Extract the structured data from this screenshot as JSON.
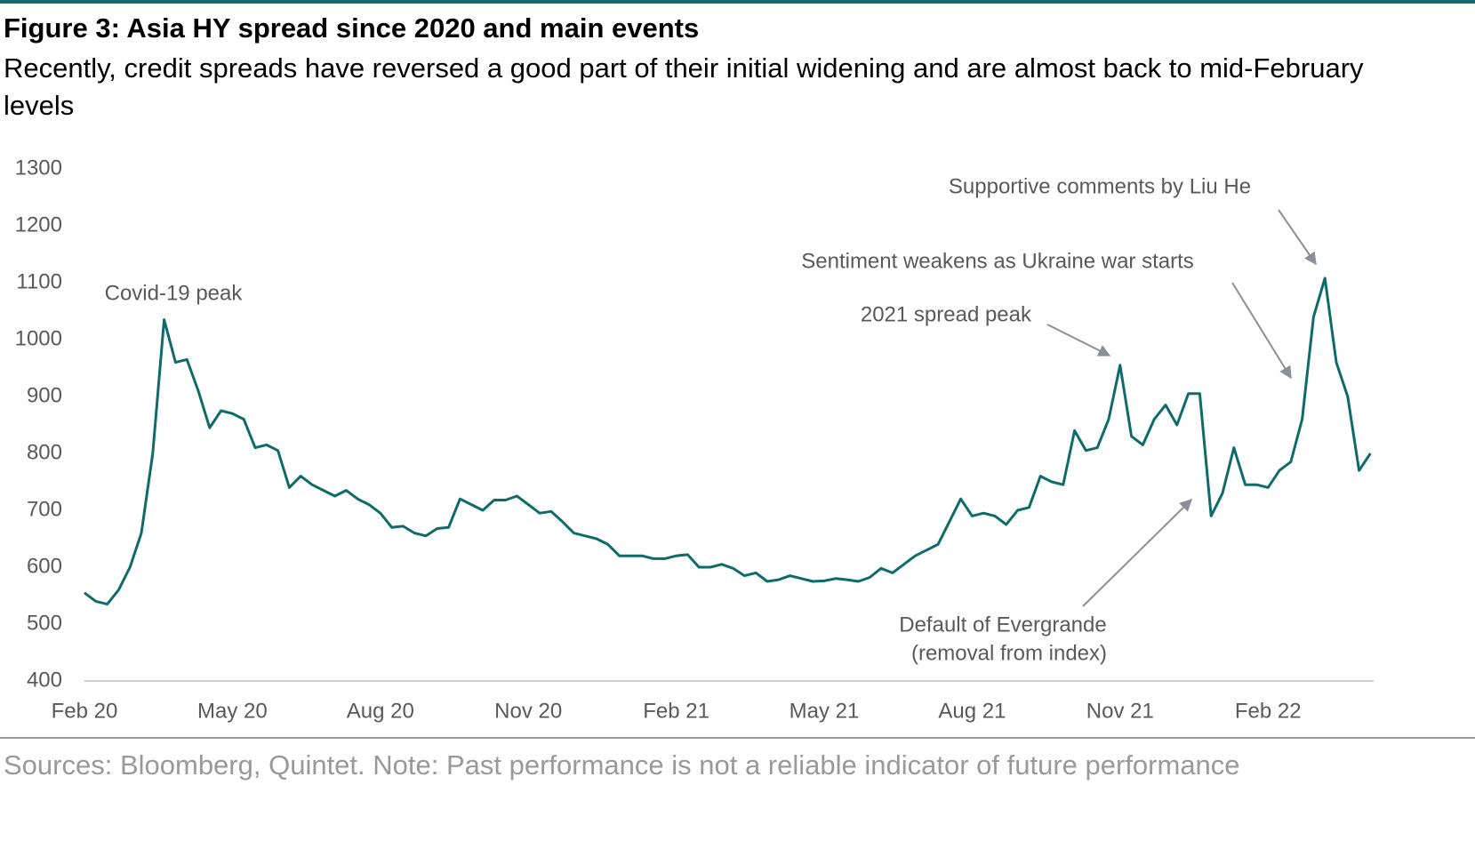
{
  "chart_data": {
    "type": "line",
    "title": "Figure 3: Asia HY spread since 2020 and main events",
    "subtitle": "Recently, credit spreads have reversed a good part of their initial widening and are almost back to mid-February levels",
    "source": "Sources: Bloomberg, Quintet. Note: Past performance is not a reliable indicator of future performance",
    "color": "#0f6b6b",
    "grid": false,
    "ylim": [
      400,
      1300
    ],
    "yticks": [
      400,
      500,
      600,
      700,
      800,
      900,
      1000,
      1100,
      1200,
      1300
    ],
    "categories": [
      "Feb 20",
      null,
      null,
      null,
      null,
      null,
      null,
      null,
      null,
      null,
      null,
      null,
      null,
      "May 20",
      null,
      null,
      null,
      null,
      null,
      null,
      null,
      null,
      null,
      null,
      null,
      null,
      "Aug 20",
      null,
      null,
      null,
      null,
      null,
      null,
      null,
      null,
      null,
      null,
      null,
      null,
      "Nov 20",
      null,
      null,
      null,
      null,
      null,
      null,
      null,
      null,
      null,
      null,
      null,
      null,
      "Feb 21",
      null,
      null,
      null,
      null,
      null,
      null,
      null,
      null,
      null,
      null,
      null,
      null,
      "May 21",
      null,
      null,
      null,
      null,
      null,
      null,
      null,
      null,
      null,
      null,
      null,
      null,
      "Aug 21",
      null,
      null,
      null,
      null,
      null,
      null,
      null,
      null,
      null,
      null,
      null,
      null,
      "Nov 21",
      null,
      null,
      null,
      null,
      null,
      null,
      null,
      null,
      null,
      null,
      null,
      null,
      "Feb 22",
      null,
      null,
      null,
      null,
      null,
      null,
      null,
      null,
      null
    ],
    "values": [
      555,
      540,
      535,
      560,
      600,
      660,
      800,
      1035,
      960,
      965,
      910,
      845,
      875,
      870,
      860,
      810,
      815,
      805,
      740,
      760,
      745,
      735,
      725,
      735,
      720,
      710,
      695,
      670,
      672,
      660,
      655,
      668,
      670,
      720,
      710,
      700,
      718,
      718,
      725,
      710,
      695,
      698,
      680,
      660,
      655,
      650,
      640,
      620,
      620,
      620,
      615,
      615,
      620,
      622,
      600,
      600,
      605,
      598,
      585,
      590,
      575,
      578,
      585,
      580,
      575,
      576,
      580,
      578,
      575,
      582,
      598,
      590,
      605,
      620,
      630,
      640,
      680,
      720,
      690,
      695,
      690,
      675,
      700,
      705,
      760,
      750,
      745,
      840,
      805,
      810,
      860,
      955,
      830,
      815,
      860,
      885,
      850,
      905,
      905,
      690,
      730,
      810,
      745,
      745,
      740,
      770,
      785,
      860,
      1040,
      1108,
      960,
      900,
      770,
      800
    ],
    "annotations": [
      {
        "lines": [
          "Covid-19 peak"
        ]
      },
      {
        "lines": [
          "2021 spread peak"
        ]
      },
      {
        "lines": [
          "Sentiment weakens as Ukraine war starts"
        ]
      },
      {
        "lines": [
          "Supportive comments by Liu He"
        ]
      },
      {
        "lines": [
          "Default of Evergrande",
          "(removal from index)"
        ]
      }
    ]
  }
}
